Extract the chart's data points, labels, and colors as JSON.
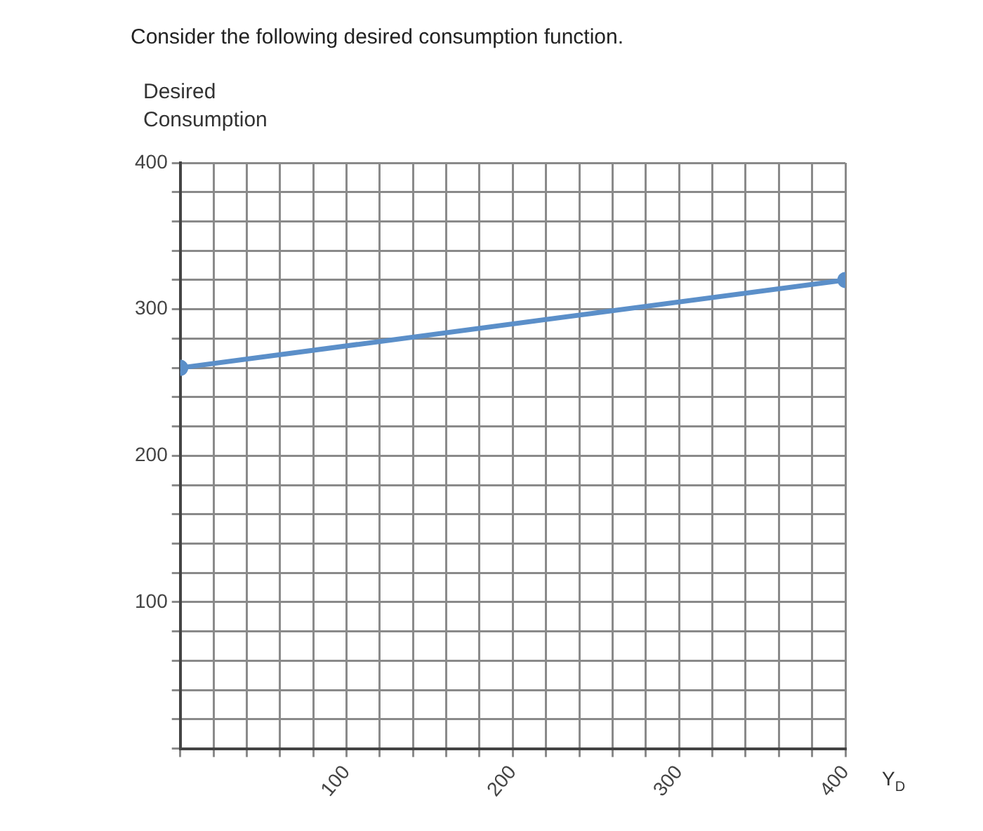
{
  "chart_data": {
    "type": "line",
    "title": "Consider the following desired consumption function.",
    "ylabel": "Desired Consumption",
    "xlabel": "Y$_{D}$",
    "x": [
      0,
      400
    ],
    "series": [
      {
        "color": "#5b8fc9",
        "values": [
          260,
          320
        ]
      }
    ],
    "xlim": [
      0,
      400
    ],
    "ylim": [
      0,
      400
    ],
    "xticks": [
      {
        "value": 0,
        "label": null
      },
      {
        "value": 20,
        "label": null
      },
      {
        "value": 40,
        "label": null
      },
      {
        "value": 60,
        "label": null
      },
      {
        "value": 80,
        "label": null
      },
      100,
      {
        "value": 120,
        "label": null
      },
      {
        "value": 140,
        "label": null
      },
      {
        "value": 160,
        "label": null
      },
      {
        "value": 180,
        "label": null
      },
      200,
      {
        "value": 220,
        "label": null
      },
      {
        "value": 240,
        "label": null
      },
      {
        "value": 260,
        "label": null
      },
      {
        "value": 280,
        "label": null
      },
      300,
      {
        "value": 320,
        "label": null
      },
      {
        "value": 340,
        "label": null
      },
      {
        "value": 360,
        "label": null
      },
      {
        "value": 380,
        "label": null
      },
      400
    ],
    "yticks": [
      {
        "value": 0,
        "label": null
      },
      {
        "value": 20,
        "label": null
      },
      {
        "value": 40,
        "label": null
      },
      {
        "value": 60,
        "label": null
      },
      {
        "value": 80,
        "label": null
      },
      100,
      {
        "value": 120,
        "label": null
      },
      {
        "value": 140,
        "label": null
      },
      {
        "value": 160,
        "label": null
      },
      {
        "value": 180,
        "label": null
      },
      200,
      {
        "value": 220,
        "label": null
      },
      {
        "value": 240,
        "label": null
      },
      {
        "value": 260,
        "label": null
      },
      {
        "value": 280,
        "label": null
      },
      300,
      {
        "value": 320,
        "label": null
      },
      {
        "value": 340,
        "label": null
      },
      {
        "value": 360,
        "label": null
      },
      {
        "value": 380,
        "label": null
      },
      400
    ],
    "grid": true,
    "marker": "circle",
    "line_style": "solid",
    "legend": false
  }
}
